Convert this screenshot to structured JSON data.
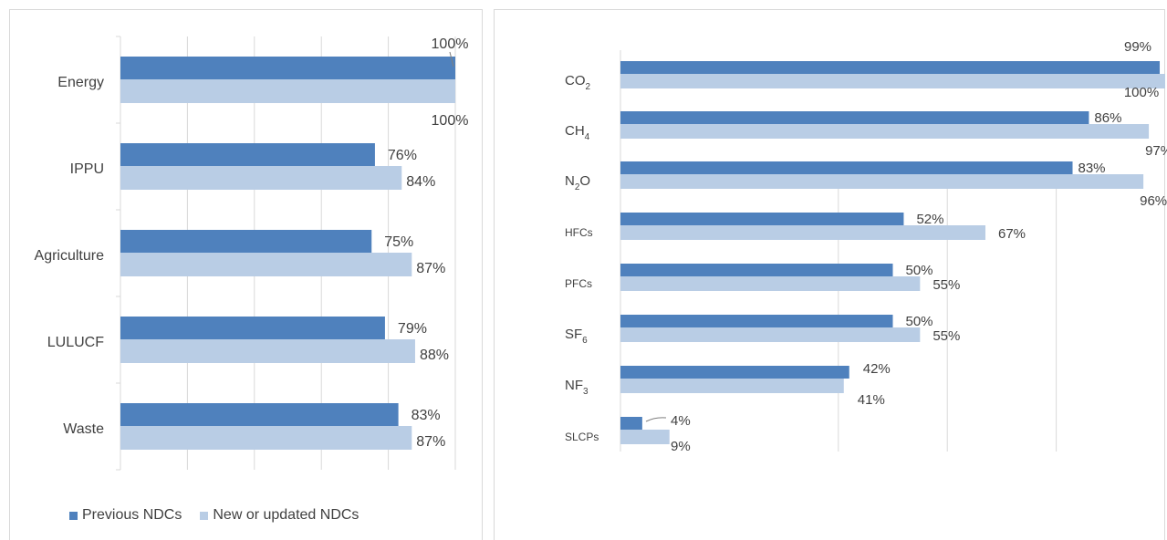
{
  "colors": {
    "previous": "#4f81bd",
    "updated": "#b9cde5",
    "grid": "#d9d9d9",
    "text": "#404040"
  },
  "legend": {
    "previous": "Previous NDCs",
    "updated": "New or updated NDCs"
  },
  "chart_data": [
    {
      "type": "bar",
      "orientation": "horizontal",
      "title": "",
      "xlabel": "",
      "ylabel": "",
      "xlim": [
        0,
        100
      ],
      "grid": true,
      "legend": "bottom",
      "categories": [
        "Energy",
        "IPPU",
        "Agriculture",
        "LULUCF",
        "Waste"
      ],
      "series": [
        {
          "name": "Previous NDCs",
          "values": [
            100,
            76,
            75,
            79,
            83
          ]
        },
        {
          "name": "New or updated NDCs",
          "values": [
            100,
            84,
            87,
            88,
            87
          ]
        }
      ]
    },
    {
      "type": "bar",
      "orientation": "horizontal",
      "title": "",
      "xlabel": "",
      "ylabel": "",
      "xlim": [
        0,
        100
      ],
      "grid": true,
      "categories": [
        {
          "base": "CO",
          "sub": "2"
        },
        {
          "base": "CH",
          "sub": "4"
        },
        {
          "base": "N",
          "sub": "2",
          "tail": "O"
        },
        {
          "base": "HFCs"
        },
        {
          "base": "PFCs"
        },
        {
          "base": "SF",
          "sub": "6"
        },
        {
          "base": "NF",
          "sub": "3"
        },
        {
          "base": "SLCPs"
        }
      ],
      "series": [
        {
          "name": "Previous NDCs",
          "values": [
            99,
            86,
            83,
            52,
            50,
            50,
            42,
            4
          ]
        },
        {
          "name": "New or updated NDCs",
          "values": [
            100,
            97,
            96,
            67,
            55,
            55,
            41,
            9
          ]
        }
      ]
    }
  ]
}
